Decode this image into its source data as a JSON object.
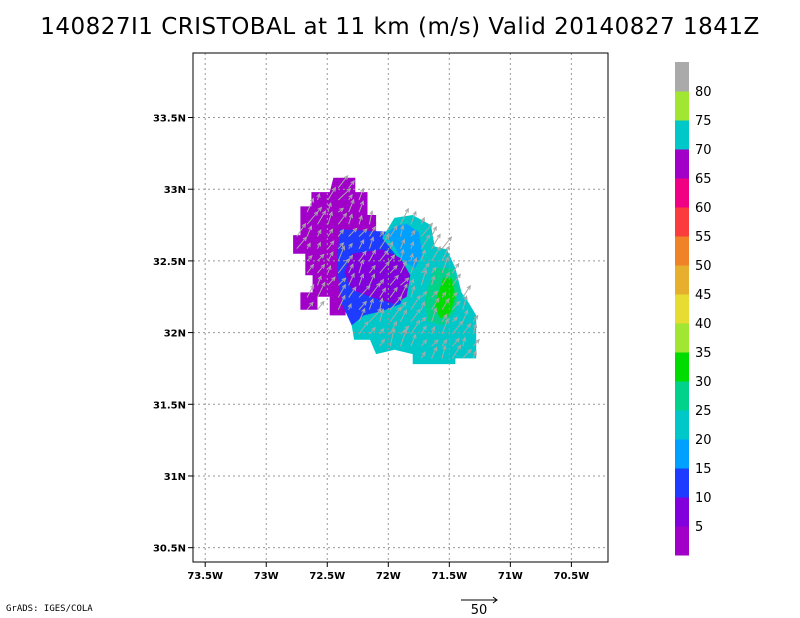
{
  "title": "140827I1 CRISTOBAL at 11 km (m/s) Valid 20140827 1841Z",
  "credit": "GrADS: IGES/COLA",
  "chart_data": {
    "type": "heatmap",
    "title": "140827I1 CRISTOBAL at 11 km (m/s) Valid 20140827 1841Z",
    "variable": "wind speed",
    "units": "m/s",
    "xlabel": "",
    "ylabel": "",
    "xlim": [
      -73.6,
      -70.2
    ],
    "ylim": [
      30.4,
      33.95
    ],
    "x_ticks": [
      {
        "value": -73.5,
        "label": "73.5W"
      },
      {
        "value": -73.0,
        "label": "73W"
      },
      {
        "value": -72.5,
        "label": "72.5W"
      },
      {
        "value": -72.0,
        "label": "72W"
      },
      {
        "value": -71.5,
        "label": "71.5W"
      },
      {
        "value": -71.0,
        "label": "71W"
      },
      {
        "value": -70.5,
        "label": "70.5W"
      }
    ],
    "y_ticks": [
      {
        "value": 30.5,
        "label": "30.5N"
      },
      {
        "value": 31.0,
        "label": "31N"
      },
      {
        "value": 31.5,
        "label": "31.5N"
      },
      {
        "value": 32.0,
        "label": "32N"
      },
      {
        "value": 32.5,
        "label": "32.5N"
      },
      {
        "value": 33.0,
        "label": "33N"
      },
      {
        "value": 33.5,
        "label": "33.5N"
      }
    ],
    "grid": true,
    "colorbar": {
      "labels": [
        "5",
        "10",
        "15",
        "20",
        "25",
        "30",
        "35",
        "40",
        "45",
        "50",
        "55",
        "60",
        "65",
        "70",
        "75",
        "80"
      ],
      "colors": [
        "#a000c8",
        "#8200dc",
        "#1e3cff",
        "#00a0ff",
        "#00c8c8",
        "#00d28c",
        "#00dc00",
        "#a0e632",
        "#e6dc32",
        "#e6af2d",
        "#f08228",
        "#fa3c3c",
        "#f00082",
        "#a000c8",
        "#00c8c8",
        "#a0e632",
        "#aaaaaa"
      ]
    },
    "reference_vector": {
      "label": "50",
      "value": 50
    },
    "regions": [
      {
        "name": "purple-west",
        "value": 5,
        "color": "#a000c8",
        "polygon": [
          [
            -72.27,
            33.08
          ],
          [
            -72.45,
            33.08
          ],
          [
            -72.48,
            32.98
          ],
          [
            -72.63,
            32.98
          ],
          [
            -72.63,
            32.88
          ],
          [
            -72.72,
            32.88
          ],
          [
            -72.72,
            32.68
          ],
          [
            -72.78,
            32.68
          ],
          [
            -72.78,
            32.55
          ],
          [
            -72.68,
            32.55
          ],
          [
            -72.68,
            32.4
          ],
          [
            -72.62,
            32.4
          ],
          [
            -72.62,
            32.28
          ],
          [
            -72.72,
            32.28
          ],
          [
            -72.72,
            32.16
          ],
          [
            -72.58,
            32.16
          ],
          [
            -72.58,
            32.25
          ],
          [
            -72.48,
            32.25
          ],
          [
            -72.48,
            32.12
          ],
          [
            -72.35,
            32.12
          ],
          [
            -72.35,
            32.35
          ],
          [
            -72.15,
            32.35
          ],
          [
            -72.15,
            32.6
          ],
          [
            -72.1,
            32.6
          ],
          [
            -72.1,
            32.82
          ],
          [
            -72.17,
            32.82
          ],
          [
            -72.17,
            32.98
          ],
          [
            -72.27,
            32.98
          ]
        ]
      },
      {
        "name": "blue-ring",
        "value": 10,
        "color": "#1e3cff",
        "polygon": [
          [
            -72.4,
            32.72
          ],
          [
            -71.92,
            32.7
          ],
          [
            -71.8,
            32.58
          ],
          [
            -71.7,
            32.4
          ],
          [
            -71.8,
            32.18
          ],
          [
            -71.95,
            32.02
          ],
          [
            -72.15,
            31.98
          ],
          [
            -72.3,
            32.05
          ],
          [
            -72.38,
            32.2
          ],
          [
            -72.42,
            32.45
          ]
        ]
      },
      {
        "name": "cyan-east",
        "value": 20,
        "color": "#00c8c8",
        "polygon": [
          [
            -72.05,
            32.66
          ],
          [
            -71.95,
            32.8
          ],
          [
            -71.8,
            32.82
          ],
          [
            -71.65,
            32.75
          ],
          [
            -71.62,
            32.6
          ],
          [
            -71.52,
            32.58
          ],
          [
            -71.45,
            32.45
          ],
          [
            -71.4,
            32.28
          ],
          [
            -71.35,
            32.22
          ],
          [
            -71.28,
            32.12
          ],
          [
            -71.28,
            31.82
          ],
          [
            -71.45,
            31.82
          ],
          [
            -71.45,
            31.78
          ],
          [
            -71.8,
            31.78
          ],
          [
            -71.8,
            31.85
          ],
          [
            -71.95,
            31.88
          ],
          [
            -72.1,
            31.85
          ],
          [
            -72.15,
            31.95
          ],
          [
            -72.28,
            31.95
          ],
          [
            -72.3,
            32.05
          ],
          [
            -72.2,
            32.12
          ],
          [
            -72.05,
            32.15
          ],
          [
            -71.9,
            32.2
          ],
          [
            -71.85,
            32.35
          ],
          [
            -71.9,
            32.5
          ]
        ]
      },
      {
        "name": "lightblue-north",
        "value": 15,
        "color": "#00a0ff",
        "polygon": [
          [
            -72.02,
            32.68
          ],
          [
            -71.95,
            32.74
          ],
          [
            -71.85,
            32.76
          ],
          [
            -71.75,
            32.7
          ],
          [
            -71.72,
            32.55
          ],
          [
            -71.78,
            32.45
          ],
          [
            -71.88,
            32.5
          ],
          [
            -71.95,
            32.6
          ]
        ]
      },
      {
        "name": "teal-band",
        "value": 25,
        "color": "#00d28c",
        "polygon": [
          [
            -71.62,
            32.45
          ],
          [
            -71.48,
            32.45
          ],
          [
            -71.42,
            32.3
          ],
          [
            -71.45,
            32.15
          ],
          [
            -71.55,
            32.05
          ],
          [
            -71.68,
            32.08
          ],
          [
            -71.7,
            32.25
          ]
        ]
      },
      {
        "name": "green-core",
        "value": 30,
        "color": "#00dc00",
        "polygon": [
          [
            -71.55,
            32.38
          ],
          [
            -71.48,
            32.38
          ],
          [
            -71.45,
            32.25
          ],
          [
            -71.5,
            32.12
          ],
          [
            -71.58,
            32.1
          ],
          [
            -71.62,
            32.2
          ]
        ]
      },
      {
        "name": "violet-core",
        "value": 5,
        "color": "#8200dc",
        "polygon": [
          [
            -72.3,
            32.55
          ],
          [
            -72.05,
            32.58
          ],
          [
            -71.9,
            32.52
          ],
          [
            -71.82,
            32.4
          ],
          [
            -71.85,
            32.25
          ],
          [
            -71.95,
            32.2
          ],
          [
            -72.15,
            32.25
          ],
          [
            -72.3,
            32.3
          ],
          [
            -72.36,
            32.42
          ]
        ]
      }
    ],
    "wind_vectors": {
      "description": "gray arrows, generally pointing north to northeast, magnitudes ~5-30 m/s"
    }
  }
}
